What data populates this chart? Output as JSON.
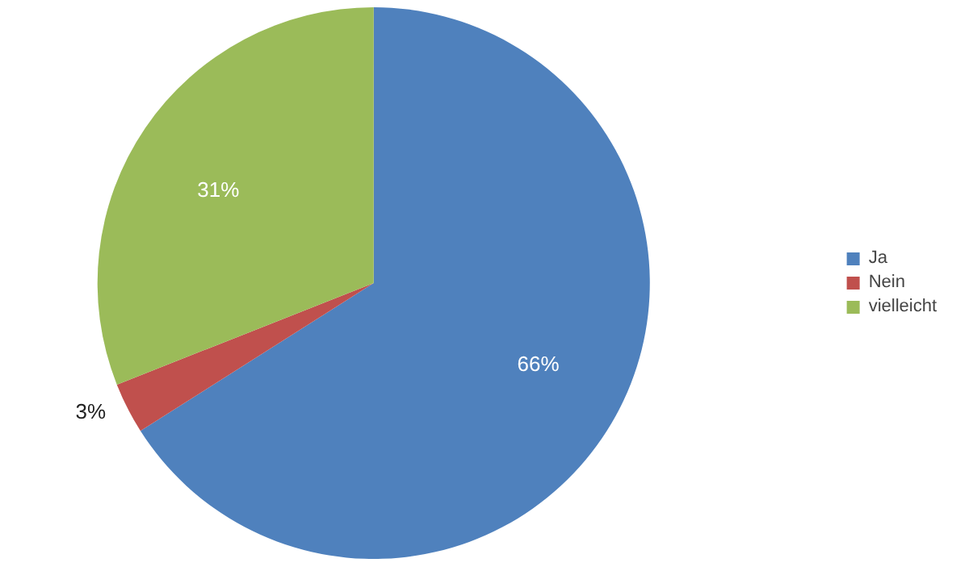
{
  "chart_data": {
    "type": "pie",
    "categories": [
      "Ja",
      "Nein",
      "vielleicht"
    ],
    "values": [
      66,
      3,
      31
    ],
    "colors": [
      "#4f81bd",
      "#c0504d",
      "#9bbb59"
    ],
    "value_labels": [
      "66%",
      "3%",
      "31%"
    ],
    "legend": "right"
  }
}
